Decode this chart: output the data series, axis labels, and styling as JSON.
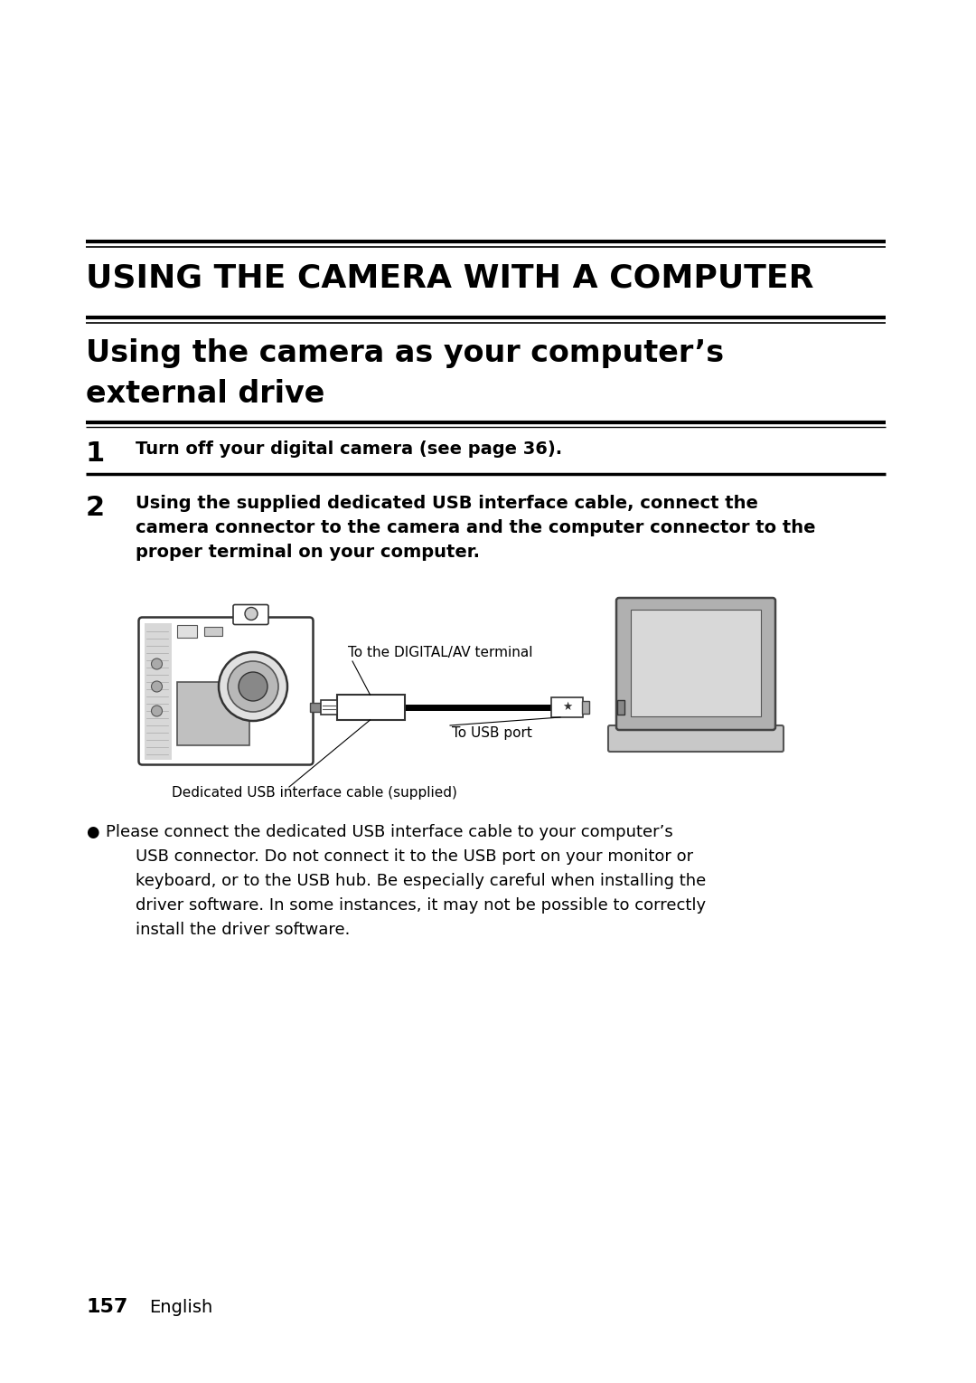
{
  "bg_color": "#ffffff",
  "main_title": "USING THE CAMERA WITH A COMPUTER",
  "section_title_line1": "Using the camera as your computer’s",
  "section_title_line2": "external drive",
  "step1_num": "1",
  "step1_text": "Turn off your digital camera (see page 36).",
  "step2_num": "2",
  "step2_line1": "Using the supplied dedicated USB interface cable, connect the",
  "step2_line2": "camera connector to the camera and the computer connector to the",
  "step2_line3": "proper terminal on your computer.",
  "label_digital": "To the DIGITAL/AV terminal",
  "label_usb": "To USB port",
  "label_cable": "Dedicated USB interface cable (supplied)",
  "bullet_line1": "● Please connect the dedicated USB interface cable to your computer’s",
  "bullet_line2": "USB connector. Do not connect it to the USB port on your monitor or",
  "bullet_line3": "keyboard, or to the USB hub. Be especially careful when installing the",
  "bullet_line4": "driver software. In some instances, it may not be possible to correctly",
  "bullet_line5": "install the driver software.",
  "footer_num": "157",
  "footer_text": "English",
  "page_bg": "#ffffff"
}
